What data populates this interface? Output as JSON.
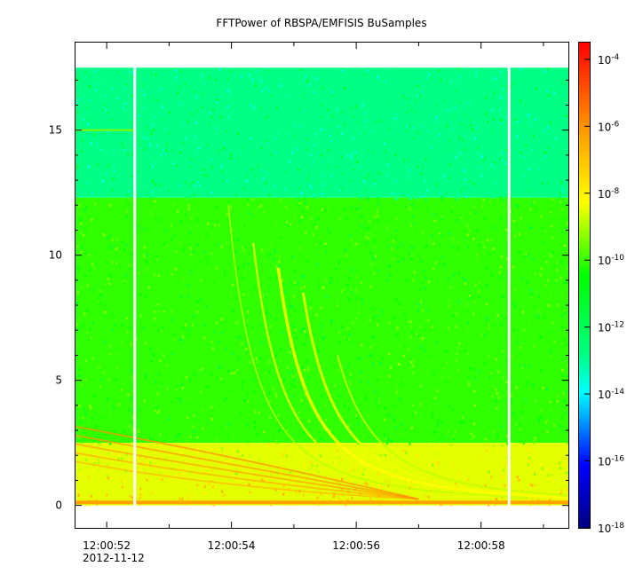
{
  "chart_data": {
    "type": "heatmap",
    "title": "FFTPower of RBSPA/EMFISIS  BuSamples",
    "xlabel": "",
    "ylabel": "",
    "x_date": "2012-11-12",
    "x_range": [
      "12:00:51.5",
      "12:00:59.4"
    ],
    "x_ticks": [
      "12:00:52",
      "12:00:54",
      "12:00:56",
      "12:00:58"
    ],
    "x_tick_date_label": "2012-11-12",
    "ylim": [
      -0.9,
      18.5
    ],
    "y_ticks": [
      "0",
      "5",
      "10",
      "15"
    ],
    "data_freq_range": [
      0,
      17.5
    ],
    "z_scale": "log",
    "zlim": [
      "1e-18",
      "1e-3.5"
    ],
    "colorbar_ticks": [
      {
        "base": "10",
        "exp": "-4"
      },
      {
        "base": "10",
        "exp": "-6"
      },
      {
        "base": "10",
        "exp": "-8"
      },
      {
        "base": "10",
        "exp": "-10"
      },
      {
        "base": "10",
        "exp": "-12"
      },
      {
        "base": "10",
        "exp": "-14"
      },
      {
        "base": "10",
        "exp": "-16"
      },
      {
        "base": "10",
        "exp": "-18"
      }
    ],
    "data_gaps": [
      "12:00:52.45",
      "12:00:58.45"
    ],
    "colormap": [
      "#00007f",
      "#0000ff",
      "#00ffff",
      "#00ff00",
      "#ffff00",
      "#ff7f00",
      "#ff0000"
    ],
    "background_levels": [
      {
        "freq_range": [
          12.3,
          17.5
        ],
        "log_power": -12
      },
      {
        "freq_range": [
          2.5,
          12.3
        ],
        "log_power": -10.3
      },
      {
        "freq_range": [
          0,
          2.5
        ],
        "log_power": -8.6
      }
    ]
  }
}
